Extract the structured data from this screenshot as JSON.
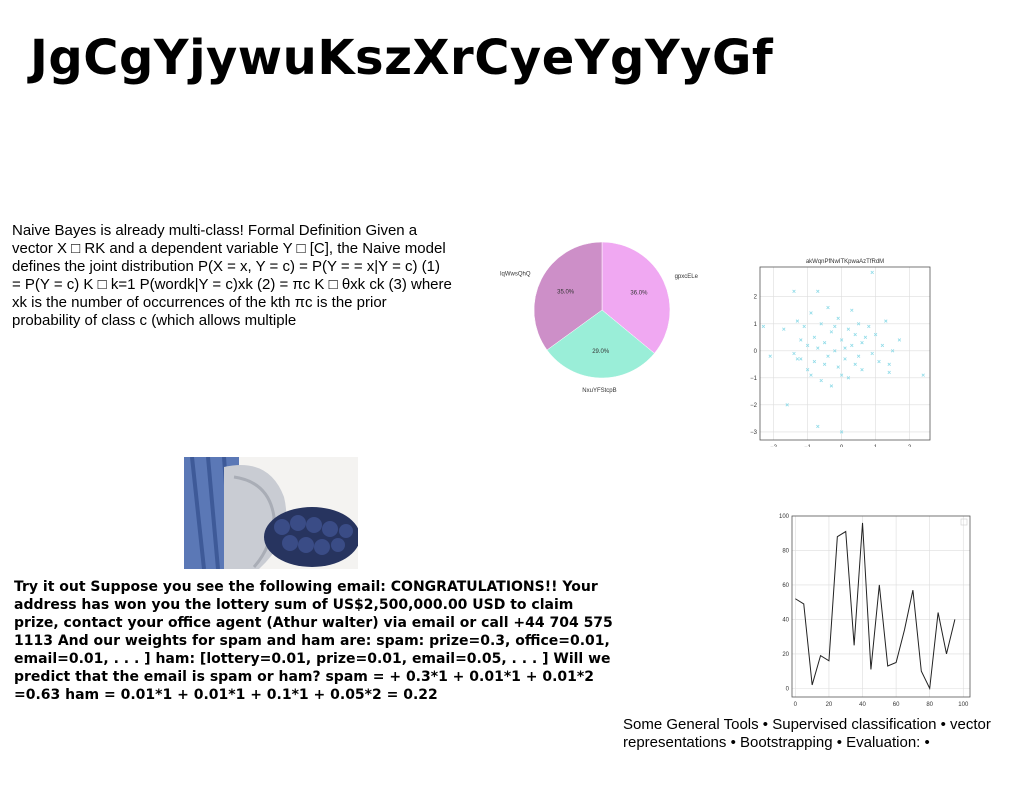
{
  "slide": {
    "title": "JgCgYjywuKszXrCyeYgYyGf",
    "paragraph1": "Naive Bayes is already multi-class! Formal Definition Given a vector X □ RK and a dependent variable Y □ [C], the Naive model defines the joint distribution P(X = x, Y = c) = P(Y = = x|Y = c) (1) = P(Y = c) K □ k=1 P(wordk|Y = c)xk (2) = πc K □ θxk ck (3) where xk is the number of occurrences of the kth πc is the prior probability of class c (which allows multiple",
    "paragraph2": "Try it out Suppose you see the following email: CONGRATULATIONS!! Your address has won you the lottery sum of US$2,500,000.00 USD to claim prize, contact your office agent (Athur walter) via email or call +44 704 575 1113 And our weights for spam and ham are: spam: prize=0.3, office=0.01, email=0.01, . . . ] ham: [lottery=0.01, prize=0.01, email=0.05, . . . ] Will we predict that the email is spam or ham? spam = + 0.3*1 + 0.01*1 + 0.01*2 =0.63 ham = 0.01*1 + 0.01*1 + 0.1*1 + 0.05*2 = 0.22",
    "paragraph3": "Some General Tools • Supervised classification • vector representations • Bootstrapping • Evaluation: •"
  },
  "chart_data": [
    {
      "type": "pie",
      "labels": [
        "gpxcELe",
        "NxuYFStcpB",
        "lqWwsQhQ"
      ],
      "values": [
        36.0,
        29.0,
        35.0
      ],
      "value_labels": [
        "36.0%",
        "29.0%",
        "35.0%"
      ],
      "colors": [
        "#f0a8f2",
        "#9aeed8",
        "#cd8fc8"
      ]
    },
    {
      "type": "scatter",
      "title": "akWqnPfNwITKpwaAzTfRdM",
      "xlim": [
        -2.4,
        2.6
      ],
      "ylim": [
        -3.3,
        3.1
      ],
      "xticks": [
        -2,
        -1,
        0,
        1,
        2
      ],
      "yticks": [
        -3,
        -2,
        -1,
        0,
        1,
        2
      ],
      "grid": true,
      "marker": "x",
      "color": "#8fdbe8",
      "x": [
        -2.1,
        -1.7,
        -1.6,
        -1.4,
        -1.3,
        -1.2,
        -1.2,
        -1.1,
        -1.0,
        -1.0,
        -0.9,
        -0.9,
        -0.8,
        -0.8,
        -0.7,
        -0.7,
        -0.6,
        -0.6,
        -0.5,
        -0.5,
        -0.4,
        -0.4,
        -0.3,
        -0.3,
        -0.2,
        -0.2,
        -0.1,
        -0.1,
        0.0,
        0.0,
        0.1,
        0.1,
        0.2,
        0.2,
        0.3,
        0.3,
        0.4,
        0.4,
        0.5,
        0.5,
        0.6,
        0.6,
        0.7,
        0.8,
        0.9,
        1.0,
        1.1,
        1.2,
        1.3,
        1.4,
        1.5,
        1.7,
        2.4,
        -2.3,
        -1.4,
        0.9,
        0.0,
        -0.7,
        -1.3,
        1.4
      ],
      "y": [
        -0.2,
        0.8,
        -2.0,
        -0.1,
        1.1,
        0.4,
        -0.3,
        0.9,
        -0.7,
        0.2,
        1.4,
        -0.9,
        0.5,
        -0.4,
        2.2,
        0.1,
        -1.1,
        1.0,
        -0.5,
        0.3,
        -0.2,
        1.6,
        0.7,
        -1.3,
        0.0,
        0.9,
        -0.6,
        1.2,
        0.4,
        -0.9,
        0.1,
        -0.3,
        0.8,
        -1.0,
        1.5,
        0.2,
        -0.5,
        0.6,
        1.0,
        -0.2,
        0.3,
        -0.7,
        0.5,
        0.9,
        -0.1,
        0.6,
        -0.4,
        0.2,
        1.1,
        -0.8,
        0.0,
        0.4,
        -0.9,
        0.9,
        2.2,
        2.9,
        -3.0,
        -2.8,
        -0.3,
        -0.5
      ]
    },
    {
      "type": "line",
      "x": [
        0,
        5,
        10,
        15,
        20,
        25,
        30,
        35,
        40,
        45,
        50,
        55,
        60,
        65,
        70,
        75,
        80,
        85,
        90,
        95,
        100
      ],
      "y": [
        52,
        49,
        2,
        19,
        16,
        88,
        91,
        25,
        96,
        11,
        60,
        13,
        15,
        34,
        57,
        10,
        0,
        44,
        20,
        40,
        null
      ],
      "xlim": [
        -2,
        104
      ],
      "ylim": [
        -5,
        100
      ],
      "xticks": [
        0,
        20,
        40,
        60,
        80,
        100
      ],
      "yticks": [
        0,
        20,
        40,
        60,
        80,
        100
      ],
      "grid": true,
      "color": "#222222"
    }
  ]
}
